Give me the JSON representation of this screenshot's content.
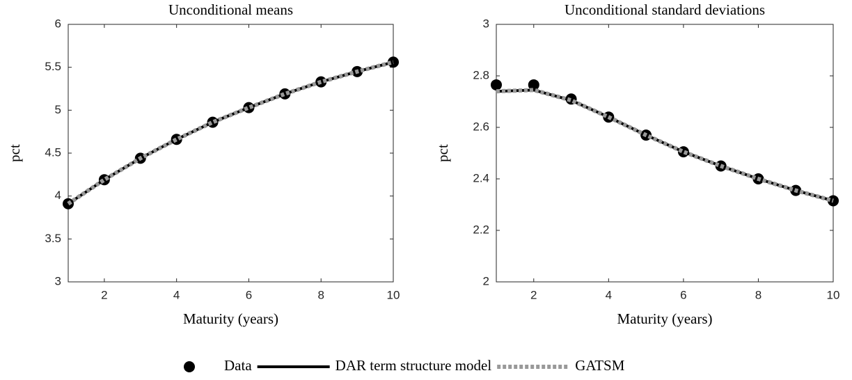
{
  "chart_data": [
    {
      "type": "line",
      "title": "Unconditional means",
      "x_label": "Maturity (years)",
      "y_label": "pct",
      "x": [
        1,
        2,
        3,
        4,
        5,
        6,
        7,
        8,
        9,
        10
      ],
      "xlim": [
        1,
        10
      ],
      "xticks": [
        2,
        4,
        6,
        8,
        10
      ],
      "ylim": [
        3,
        6
      ],
      "yticks": [
        3,
        3.5,
        4,
        4.5,
        5,
        5.5,
        6
      ],
      "series": [
        {
          "name": "Data",
          "color": "#000000",
          "mode": "markers",
          "values": [
            3.91,
            4.19,
            4.44,
            4.66,
            4.86,
            5.03,
            5.19,
            5.33,
            5.45,
            5.56
          ]
        },
        {
          "name": "DAR term structure model",
          "color": "#000000",
          "mode": "line",
          "values": [
            3.91,
            4.19,
            4.44,
            4.66,
            4.86,
            5.03,
            5.19,
            5.33,
            5.45,
            5.56
          ]
        },
        {
          "name": "GATSM",
          "color": "#999999",
          "mode": "dotted",
          "values": [
            3.91,
            4.19,
            4.44,
            4.66,
            4.86,
            5.03,
            5.19,
            5.33,
            5.45,
            5.56
          ]
        }
      ]
    },
    {
      "type": "line",
      "title": "Unconditional standard deviations",
      "x_label": "Maturity (years)",
      "y_label": "pct",
      "x": [
        1,
        2,
        3,
        4,
        5,
        6,
        7,
        8,
        9,
        10
      ],
      "xlim": [
        1,
        10
      ],
      "xticks": [
        2,
        4,
        6,
        8,
        10
      ],
      "ylim": [
        2,
        3
      ],
      "yticks": [
        2,
        2.2,
        2.4,
        2.6,
        2.8,
        3
      ],
      "series": [
        {
          "color": "#000000",
          "mode": "markers",
          "values": [
            2.765,
            2.765,
            2.71,
            2.64,
            2.57,
            2.505,
            2.45,
            2.4,
            2.355,
            2.315
          ]
        },
        {
          "color": "#000000",
          "mode": "line",
          "values": [
            2.74,
            2.745,
            2.705,
            2.64,
            2.57,
            2.505,
            2.45,
            2.4,
            2.355,
            2.315
          ]
        },
        {
          "color": "#999999",
          "mode": "dotted",
          "values": [
            2.74,
            2.745,
            2.705,
            2.64,
            2.57,
            2.505,
            2.45,
            2.4,
            2.355,
            2.315
          ]
        }
      ]
    }
  ]
}
